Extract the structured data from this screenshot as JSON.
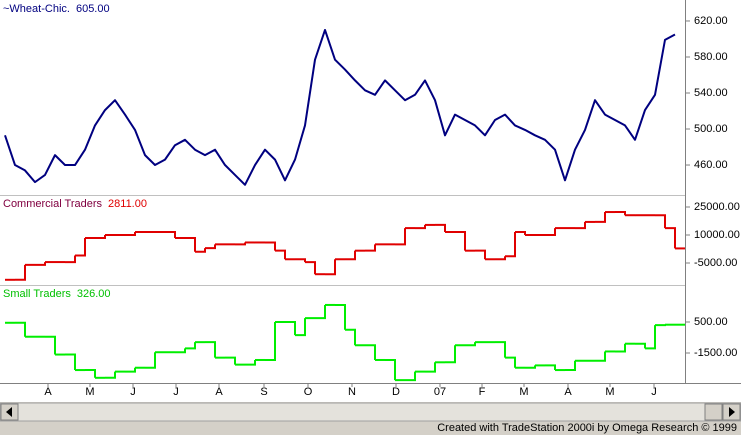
{
  "chart_data": [
    {
      "type": "line",
      "name": "~Wheat-Chic.",
      "color": "#000080",
      "label_color": "#000080",
      "x": [
        0,
        1,
        2,
        3,
        4,
        5,
        6,
        7,
        8,
        9,
        10,
        11,
        12,
        13,
        14,
        15,
        16,
        17,
        18,
        19,
        20,
        21,
        22,
        23,
        24,
        25,
        26,
        27,
        28,
        29,
        30,
        31,
        32,
        33,
        34,
        35,
        36,
        37,
        38,
        39,
        40,
        41,
        42,
        43,
        44,
        45,
        46,
        47,
        48,
        49,
        50,
        51,
        52,
        53,
        54,
        55,
        56,
        57,
        58,
        59,
        60,
        61,
        62,
        63,
        64,
        65,
        66,
        67
      ],
      "values": [
        493,
        460,
        454,
        441,
        449,
        471,
        460,
        460,
        477,
        504,
        521,
        532,
        516,
        499,
        471,
        460,
        466,
        482,
        488,
        477,
        471,
        477,
        460,
        449,
        438,
        460,
        477,
        466,
        443,
        466,
        504,
        577,
        610,
        577,
        566,
        554,
        543,
        538,
        554,
        543,
        532,
        538,
        554,
        532,
        493,
        516,
        510,
        504,
        493,
        510,
        516,
        504,
        499,
        493,
        488,
        477,
        443,
        477,
        499,
        532,
        516,
        510,
        504,
        488,
        521,
        538,
        599,
        605
      ],
      "value_labels": [
        null,
        null,
        null,
        null,
        null,
        null,
        null,
        null,
        null,
        null,
        null,
        null,
        null,
        null,
        null,
        null,
        null,
        null,
        null,
        null,
        null,
        null,
        null,
        null,
        null,
        null,
        null,
        null,
        null,
        null,
        null,
        null,
        null,
        null,
        null,
        null,
        null,
        null,
        null,
        null,
        null,
        null,
        null,
        null,
        null,
        null,
        null,
        null,
        null,
        null,
        null,
        null,
        null,
        null,
        null,
        null,
        null,
        null,
        null,
        null,
        null,
        null,
        null,
        null,
        null,
        null,
        null,
        "605.00"
      ],
      "xlim": [
        0,
        68
      ],
      "ylim": [
        426.7,
        643.3
      ],
      "yticks": [
        {
          "value": 460,
          "label": "460.00"
        },
        {
          "value": 500,
          "label": "500.00"
        },
        {
          "value": 540,
          "label": "540.00"
        },
        {
          "value": 580,
          "label": "580.00"
        },
        {
          "value": 620,
          "label": "620.00"
        }
      ]
    },
    {
      "type": "line",
      "step": true,
      "name": "Commercial Traders",
      "color": "#e00000",
      "label_color": "#800040",
      "x": [
        0,
        1,
        2,
        3,
        4,
        5,
        6,
        7,
        8,
        9,
        10,
        11,
        12,
        13,
        14,
        15,
        16,
        17,
        18,
        19,
        20,
        21,
        22,
        23,
        24,
        25,
        26,
        27,
        28,
        29,
        30,
        31,
        32,
        33,
        34,
        35,
        36,
        37,
        38,
        39,
        40,
        41,
        42,
        43,
        44,
        45,
        46,
        47,
        48,
        49,
        50,
        51,
        52,
        53,
        54,
        55,
        56,
        57,
        58,
        59,
        60,
        61,
        62,
        63,
        64,
        65,
        66,
        67
      ],
      "values": [
        -14000,
        -14000,
        -6000,
        -6000,
        -4500,
        -4500,
        -4500,
        -1000,
        8400,
        8400,
        10000,
        10000,
        10000,
        11600,
        11600,
        11600,
        11600,
        8400,
        8400,
        1000,
        3000,
        5000,
        5000,
        5000,
        6000,
        6000,
        6000,
        1600,
        -3000,
        -3000,
        -4500,
        -11000,
        -11000,
        -3000,
        -3000,
        1600,
        1600,
        5000,
        5000,
        5000,
        13700,
        13700,
        15400,
        15400,
        11600,
        11600,
        1600,
        1600,
        -3000,
        -3000,
        -1400,
        11600,
        10000,
        10000,
        10000,
        13700,
        13700,
        13700,
        17000,
        17000,
        22300,
        22300,
        20600,
        20600,
        20600,
        20600,
        13700,
        2811
      ],
      "value_labels": [
        null,
        null,
        null,
        null,
        null,
        null,
        null,
        null,
        null,
        null,
        null,
        null,
        null,
        null,
        null,
        null,
        null,
        null,
        null,
        null,
        null,
        null,
        null,
        null,
        null,
        null,
        null,
        null,
        null,
        null,
        null,
        null,
        null,
        null,
        null,
        null,
        null,
        null,
        null,
        null,
        null,
        null,
        null,
        null,
        null,
        null,
        null,
        null,
        null,
        null,
        null,
        null,
        null,
        null,
        null,
        null,
        null,
        null,
        null,
        null,
        null,
        null,
        null,
        null,
        null,
        null,
        null,
        "2811.00"
      ],
      "xlim": [
        0,
        68
      ],
      "ylim": [
        -16786,
        31429
      ],
      "yticks": [
        {
          "value": -5000,
          "label": "-5000.00"
        },
        {
          "value": 10000,
          "label": "10000.00"
        },
        {
          "value": 25000,
          "label": "25000.00"
        }
      ]
    },
    {
      "type": "line",
      "step": true,
      "name": "Small Traders",
      "color": "#00ee00",
      "label_color": "#00c000",
      "x": [
        0,
        1,
        2,
        3,
        4,
        5,
        6,
        7,
        8,
        9,
        10,
        11,
        12,
        13,
        14,
        15,
        16,
        17,
        18,
        19,
        20,
        21,
        22,
        23,
        24,
        25,
        26,
        27,
        28,
        29,
        30,
        31,
        32,
        33,
        34,
        35,
        36,
        37,
        38,
        39,
        40,
        41,
        42,
        43,
        44,
        45,
        46,
        47,
        48,
        49,
        50,
        51,
        52,
        53,
        54,
        55,
        56,
        57,
        58,
        59,
        60,
        61,
        62,
        63,
        64,
        65,
        66,
        67
      ],
      "values": [
        450,
        450,
        -450,
        -450,
        -450,
        -1600,
        -1600,
        -2600,
        -2600,
        -3100,
        -3100,
        -2700,
        -2700,
        -2450,
        -2450,
        -1450,
        -1450,
        -1450,
        -1200,
        -800,
        -800,
        -1800,
        -1800,
        -2250,
        -2250,
        -1950,
        -1950,
        500,
        500,
        -350,
        750,
        750,
        1600,
        1600,
        0,
        -1000,
        -1000,
        -1950,
        -1950,
        -3250,
        -3250,
        -2700,
        -2700,
        -2100,
        -2100,
        -1000,
        -1000,
        -800,
        -800,
        -800,
        -1800,
        -2450,
        -2450,
        -2300,
        -2300,
        -2600,
        -2600,
        -2000,
        -2000,
        -2000,
        -1400,
        -1400,
        -900,
        -900,
        -1200,
        300,
        326,
        326
      ],
      "value_labels": [
        null,
        null,
        null,
        null,
        null,
        null,
        null,
        null,
        null,
        null,
        null,
        null,
        null,
        null,
        null,
        null,
        null,
        null,
        null,
        null,
        null,
        null,
        null,
        null,
        null,
        null,
        null,
        null,
        null,
        null,
        null,
        null,
        null,
        null,
        null,
        null,
        null,
        null,
        null,
        null,
        null,
        null,
        null,
        null,
        null,
        null,
        null,
        null,
        null,
        null,
        null,
        null,
        null,
        null,
        null,
        null,
        null,
        null,
        null,
        null,
        null,
        null,
        null,
        null,
        null,
        null,
        null,
        "326.00"
      ],
      "xlim": [
        0,
        68
      ],
      "ylim": [
        -3435,
        2887
      ],
      "yticks": [
        {
          "value": -1500,
          "label": "-1500.00"
        },
        {
          "value": 500,
          "label": "500.00"
        }
      ],
      "xticks": [
        {
          "value": 4.3,
          "label": "A"
        },
        {
          "value": 8.5,
          "label": "M"
        },
        {
          "value": 12.8,
          "label": "J"
        },
        {
          "value": 17.1,
          "label": "J"
        },
        {
          "value": 21.4,
          "label": "A"
        },
        {
          "value": 25.9,
          "label": "S"
        },
        {
          "value": 30.3,
          "label": "O"
        },
        {
          "value": 34.7,
          "label": "N"
        },
        {
          "value": 39.1,
          "label": "D"
        },
        {
          "value": 43.5,
          "label": "07"
        },
        {
          "value": 47.7,
          "label": "F"
        },
        {
          "value": 51.9,
          "label": "M"
        },
        {
          "value": 56.3,
          "label": "A"
        },
        {
          "value": 60.5,
          "label": "M"
        },
        {
          "value": 64.9,
          "label": "J"
        }
      ]
    }
  ],
  "footer": "Created with TradeStation 2000i by Omega Research © 1999"
}
